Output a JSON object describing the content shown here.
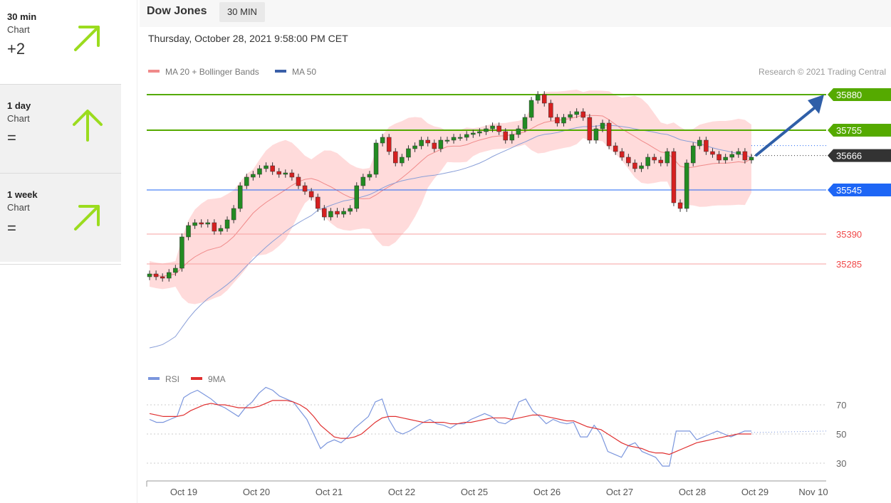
{
  "sidebar": {
    "cards": [
      {
        "period": "30 min",
        "kind": "Chart",
        "value": "+2",
        "arrow": "up-right-arrow-icon"
      },
      {
        "period": "1 day",
        "kind": "Chart",
        "value": "=",
        "arrow": "up-arrow-icon"
      },
      {
        "period": "1 week",
        "kind": "Chart",
        "value": "=",
        "arrow": "up-right-arrow-icon"
      }
    ],
    "arrow_color": "#9bdc1e"
  },
  "header": {
    "instrument": "Dow Jones",
    "timeframe": "30 MIN",
    "datetime": "Thursday, October 28, 2021 9:58:00 PM CET"
  },
  "legend": {
    "ma20": "MA 20 + Bollinger Bands",
    "ma50": "MA 50",
    "credit": "Research © 2021 Trading Central",
    "rsi": "RSI",
    "ma9": "9MA"
  },
  "chart_data": {
    "type": "candlestick",
    "x_labels": [
      "Oct 19",
      "Oct 20",
      "Oct 21",
      "Oct 22",
      "Oct 25",
      "Oct 26",
      "Oct 27",
      "Oct 28",
      "Oct 29",
      "Nov 10"
    ],
    "price_ylim": [
      35000,
      35950
    ],
    "levels": [
      {
        "value": 35880,
        "label": "35880",
        "color": "#55aa00",
        "style": "tag"
      },
      {
        "value": 35755,
        "label": "35755",
        "color": "#55aa00",
        "style": "tag"
      },
      {
        "value": 35666,
        "label": "35666",
        "color": "#333333",
        "style": "tag"
      },
      {
        "value": 35545,
        "label": "35545",
        "color": "#1e66f5",
        "style": "tag"
      },
      {
        "value": 35390,
        "label": "35390",
        "color": "#f04848",
        "style": "line"
      },
      {
        "value": 35285,
        "label": "35285",
        "color": "#f04848",
        "style": "line"
      }
    ],
    "close": [
      35250,
      35240,
      35235,
      35255,
      35270,
      35380,
      35420,
      35430,
      35425,
      35430,
      35400,
      35410,
      35440,
      35480,
      35560,
      35590,
      35600,
      35620,
      35630,
      35610,
      35600,
      35605,
      35590,
      35560,
      35540,
      35520,
      35480,
      35450,
      35470,
      35460,
      35470,
      35480,
      35560,
      35590,
      35600,
      35710,
      35730,
      35680,
      35640,
      35660,
      35690,
      35700,
      35720,
      35710,
      35690,
      35720,
      35720,
      35730,
      35730,
      35740,
      35745,
      35750,
      35760,
      35770,
      35750,
      35720,
      35740,
      35760,
      35800,
      35860,
      35880,
      35850,
      35800,
      35780,
      35800,
      35810,
      35820,
      35800,
      35720,
      35760,
      35780,
      35700,
      35680,
      35660,
      35640,
      35620,
      35630,
      35660,
      35650,
      35640,
      35680,
      35500,
      35480,
      35640,
      35700,
      35720,
      35680,
      35670,
      35650,
      35660,
      35670,
      35680,
      35650,
      35660
    ],
    "rsi": {
      "ylim": [
        20,
        90
      ],
      "ticks": [
        70,
        50,
        30
      ],
      "rsi": [
        60,
        58,
        58,
        60,
        62,
        75,
        78,
        80,
        77,
        74,
        70,
        68,
        65,
        62,
        68,
        72,
        78,
        82,
        80,
        76,
        74,
        72,
        66,
        60,
        50,
        40,
        44,
        46,
        44,
        48,
        54,
        58,
        62,
        72,
        74,
        60,
        52,
        50,
        52,
        55,
        58,
        60,
        57,
        56,
        54,
        57,
        57,
        60,
        62,
        64,
        62,
        58,
        57,
        60,
        72,
        74,
        66,
        62,
        57,
        60,
        58,
        57,
        58,
        48,
        48,
        56,
        50,
        38,
        36,
        34,
        42,
        44,
        38,
        36,
        34,
        28,
        28,
        52,
        52,
        52,
        46,
        48,
        50,
        52,
        50,
        48,
        50,
        52,
        52
      ],
      "ma9": [
        64,
        63,
        62,
        62,
        62,
        63,
        66,
        68,
        70,
        71,
        70,
        70,
        69,
        68,
        68,
        68,
        69,
        71,
        73,
        73,
        73,
        72,
        70,
        67,
        62,
        56,
        52,
        48,
        47,
        47,
        48,
        50,
        54,
        58,
        61,
        62,
        62,
        61,
        60,
        59,
        58,
        58,
        58,
        58,
        57,
        57,
        58,
        58,
        59,
        60,
        61,
        61,
        61,
        60,
        61,
        62,
        63,
        63,
        62,
        61,
        60,
        59,
        59,
        57,
        55,
        54,
        53,
        50,
        47,
        44,
        42,
        41,
        40,
        38,
        37,
        37,
        36,
        38,
        40,
        42,
        44,
        45,
        46,
        47,
        48,
        49,
        50,
        50,
        50
      ]
    }
  }
}
